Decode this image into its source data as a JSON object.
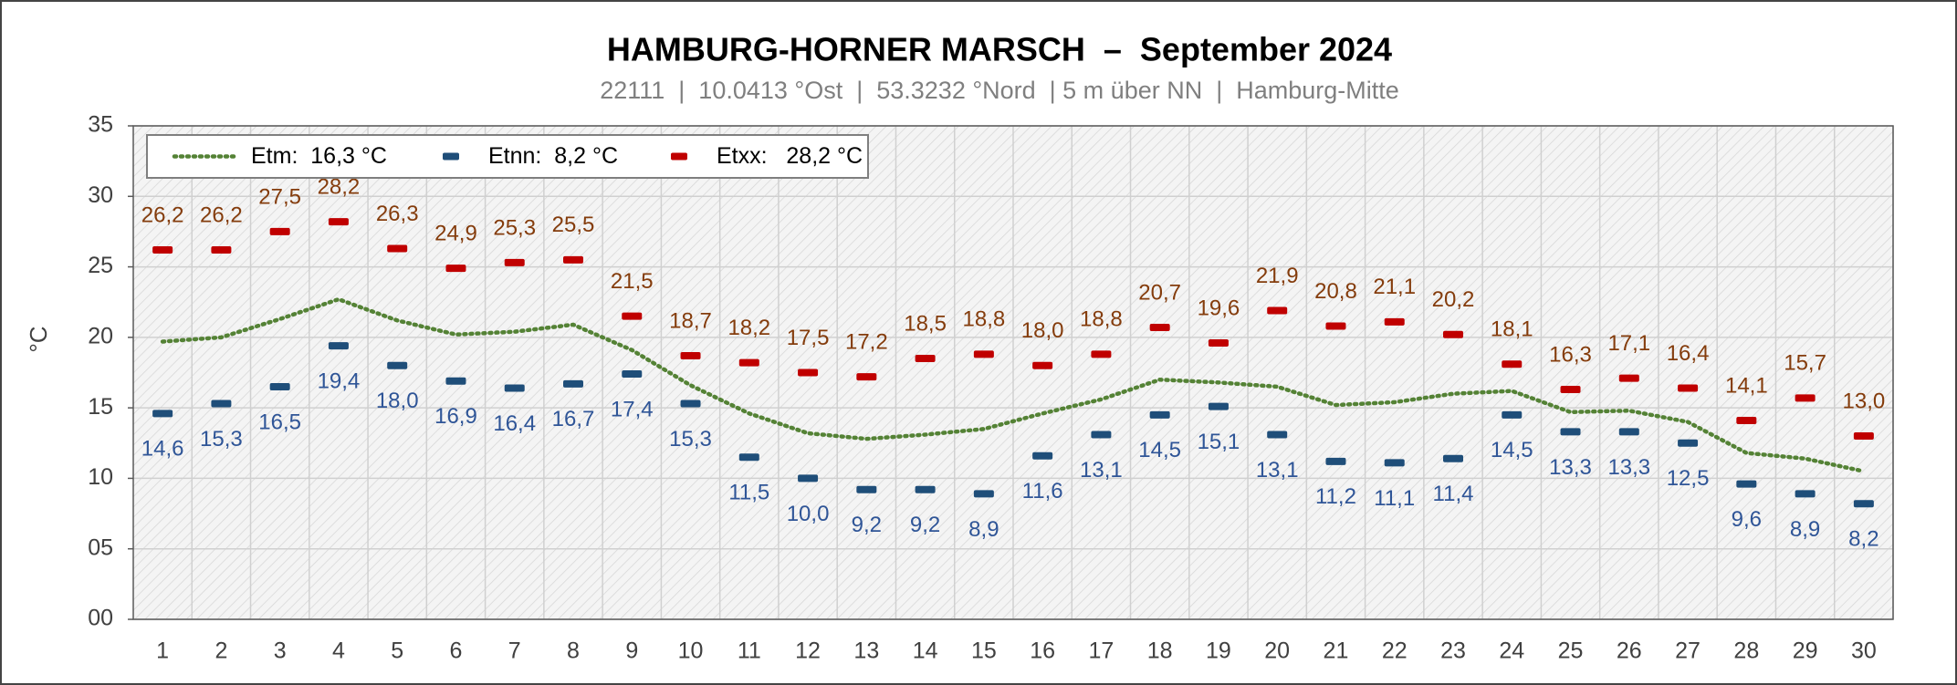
{
  "chart_data": {
    "type": "line",
    "title": "HAMBURG-HORNER MARSCH  –  September 2024",
    "subtitle": "22111  |  10.0413 °Ost  |  53.3232 °Nord  | 5 m über NN  |  Hamburg-Mitte",
    "y_label": "°C",
    "categories": [
      "1",
      "2",
      "3",
      "4",
      "5",
      "6",
      "7",
      "8",
      "9",
      "10",
      "11",
      "12",
      "13",
      "14",
      "15",
      "16",
      "17",
      "18",
      "19",
      "20",
      "21",
      "22",
      "23",
      "24",
      "25",
      "26",
      "27",
      "28",
      "29",
      "30"
    ],
    "ylim": [
      0,
      35
    ],
    "yticks": [
      {
        "value": 0,
        "label": "00"
      },
      {
        "value": 5,
        "label": "05"
      },
      10,
      15,
      20,
      25,
      30,
      35
    ],
    "grid": true,
    "legend": "top-left",
    "series": [
      {
        "name": "Etm:  16,3 °C",
        "color": "#548235",
        "marker": "dotted-line",
        "values": [
          19.7,
          20.0,
          21.3,
          22.7,
          21.2,
          20.2,
          20.4,
          20.9,
          19.1,
          16.6,
          14.6,
          13.2,
          12.8,
          13.1,
          13.5,
          14.6,
          15.6,
          17.0,
          16.8,
          16.5,
          15.2,
          15.4,
          16.0,
          16.2,
          14.7,
          14.8,
          14.0,
          11.8,
          11.4,
          10.5
        ]
      },
      {
        "name": "Etnn:  8,2 °C",
        "color": "#1f4e79",
        "label_color": "#2f5597",
        "marker": "dash",
        "label_position": "below",
        "values": [
          14.6,
          15.3,
          16.5,
          19.4,
          18.0,
          16.9,
          16.4,
          16.7,
          17.4,
          15.3,
          11.5,
          10.0,
          9.2,
          9.2,
          8.9,
          11.6,
          13.1,
          14.5,
          15.1,
          13.1,
          11.2,
          11.1,
          11.4,
          14.5,
          13.3,
          13.3,
          12.5,
          9.6,
          8.9,
          8.2
        ],
        "value_labels": [
          "14,6",
          "15,3",
          "16,5",
          "19,4",
          "18,0",
          "16,9",
          "16,4",
          "16,7",
          "17,4",
          "15,3",
          "11,5",
          "10,0",
          "9,2",
          "9,2",
          "8,9",
          "11,6",
          "13,1",
          "14,5",
          "15,1",
          "13,1",
          "11,2",
          "11,1",
          "11,4",
          "14,5",
          "13,3",
          "13,3",
          "12,5",
          "9,6",
          "8,9",
          "8,2"
        ]
      },
      {
        "name": "Etxx:   28,2 °C",
        "color": "#c00000",
        "label_color": "#843c0c",
        "marker": "dash",
        "label_position": "above",
        "values": [
          26.2,
          26.2,
          27.5,
          28.2,
          26.3,
          24.9,
          25.3,
          25.5,
          21.5,
          18.7,
          18.2,
          17.5,
          17.2,
          18.5,
          18.8,
          18.0,
          18.8,
          20.7,
          19.6,
          21.9,
          20.8,
          21.1,
          20.2,
          18.1,
          16.3,
          17.1,
          16.4,
          14.1,
          15.7,
          13.0
        ],
        "value_labels": [
          "26,2",
          "26,2",
          "27,5",
          "28,2",
          "26,3",
          "24,9",
          "25,3",
          "25,5",
          "21,5",
          "18,7",
          "18,2",
          "17,5",
          "17,2",
          "18,5",
          "18,8",
          "18,0",
          "18,8",
          "20,7",
          "19,6",
          "21,9",
          "20,8",
          "21,1",
          "20,2",
          "18,1",
          "16,3",
          "17,1",
          "16,4",
          "14,1",
          "15,7",
          "13,0"
        ]
      }
    ]
  }
}
